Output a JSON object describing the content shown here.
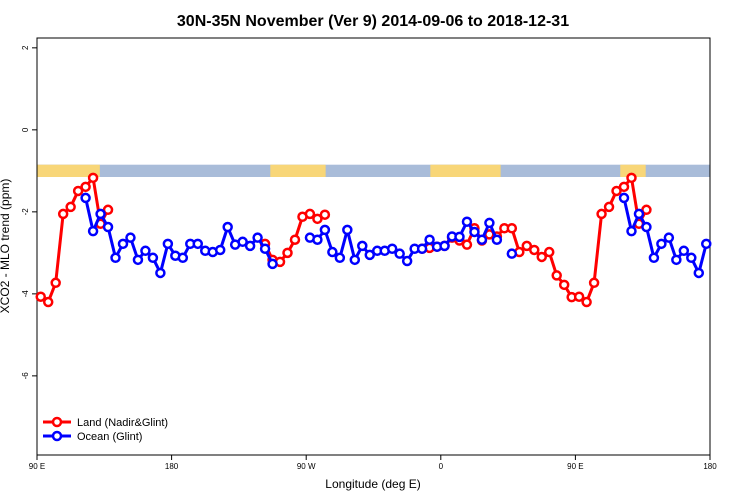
{
  "chart_data": {
    "type": "line",
    "title": "30N-35N November (Ver 9)   2014-09-06 to 2018-12-31",
    "x_label": "Longitude (deg E)",
    "y_label": "XCO2 - MLO trend (ppm)",
    "xlim": [
      90,
      540
    ],
    "ylim": [
      -7.93,
      2.24
    ],
    "xticks": [
      {
        "value": 90,
        "label": "90 E"
      },
      180,
      {
        "value": 270,
        "label": "90 W"
      },
      {
        "value": 360,
        "label": "0"
      },
      {
        "value": 450,
        "label": "90 E"
      },
      {
        "value": 540,
        "label": "180"
      }
    ],
    "yticks": [
      2,
      0,
      -2,
      -4,
      -6
    ],
    "band": {
      "range": [
        -1.15,
        -0.85
      ],
      "ocean_color": "#a9bcd9",
      "land_color": "#f8d678",
      "land": [
        [
          90,
          132
        ],
        [
          246,
          283
        ],
        [
          353,
          400
        ],
        [
          480,
          497
        ]
      ]
    },
    "legend": "bottom-left",
    "x": [
      92.5,
      97.5,
      102.5,
      107.5,
      112.5,
      117.5,
      122.5,
      127.5,
      132.5,
      137.5,
      142.5,
      147.5,
      152.5,
      157.5,
      162.5,
      167.5,
      172.5,
      177.5,
      182.5,
      187.5,
      192.5,
      197.5,
      202.5,
      207.5,
      212.5,
      217.5,
      222.5,
      227.5,
      232.5,
      237.5,
      242.5,
      247.5,
      252.5,
      257.5,
      262.5,
      267.5,
      272.5,
      277.5,
      282.5,
      287.5,
      292.5,
      297.5,
      302.5,
      307.5,
      312.5,
      317.5,
      322.5,
      327.5,
      332.5,
      337.5,
      342.5,
      347.5,
      352.5,
      357.5,
      362.5,
      367.5,
      372.5,
      377.5,
      382.5,
      387.5,
      392.5,
      397.5,
      402.5,
      407.5,
      412.5,
      417.5,
      422.5,
      427.5,
      432.5,
      437.5,
      442.5,
      447.5,
      452.5,
      457.5,
      462.5,
      467.5,
      472.5,
      477.5,
      482.5,
      487.5,
      492.5,
      497.5,
      502.5,
      507.5,
      512.5,
      517.5,
      522.5,
      527.5,
      532.5,
      537.5
    ],
    "series": [
      {
        "name": "Land (Nadir&Glint)",
        "color": "#ff0000",
        "values": [
          -4.07,
          -4.2,
          -3.73,
          -2.05,
          -1.88,
          -1.49,
          -1.39,
          -1.17,
          -2.29,
          -1.95,
          null,
          null,
          null,
          null,
          null,
          null,
          null,
          null,
          null,
          null,
          null,
          null,
          null,
          null,
          null,
          null,
          null,
          null,
          null,
          null,
          -2.78,
          -3.17,
          -3.22,
          -3.0,
          -2.68,
          -2.12,
          -2.05,
          -2.17,
          -2.07,
          null,
          null,
          null,
          null,
          null,
          null,
          null,
          null,
          null,
          null,
          null,
          null,
          -2.9,
          -2.88,
          -2.85,
          -2.83,
          -2.63,
          -2.7,
          -2.8,
          -2.4,
          -2.7,
          -2.55,
          -2.6,
          -2.4,
          -2.4,
          -2.98,
          -2.83,
          -2.93,
          -3.1,
          -2.98,
          -3.55,
          -3.78,
          -4.08,
          -4.07,
          -4.2,
          -3.73,
          -2.05,
          -1.88,
          -1.49,
          -1.39,
          -1.17,
          -2.29,
          -1.95,
          null,
          null,
          null,
          null,
          null,
          null,
          null,
          null
        ]
      },
      {
        "name": "Ocean (Glint)",
        "color": "#0000ff",
        "values": [
          null,
          null,
          null,
          null,
          null,
          null,
          -1.66,
          -2.47,
          -2.05,
          -2.37,
          -3.12,
          -2.78,
          -2.63,
          -3.17,
          -2.95,
          -3.12,
          -3.49,
          -2.78,
          -3.07,
          -3.12,
          -2.78,
          -2.78,
          -2.95,
          -2.98,
          -2.93,
          -2.37,
          -2.8,
          -2.73,
          -2.83,
          -2.63,
          -2.9,
          -3.27,
          null,
          null,
          null,
          null,
          -2.63,
          -2.68,
          -2.44,
          -2.98,
          -3.12,
          -2.44,
          -3.17,
          -2.83,
          -3.05,
          -2.95,
          -2.95,
          -2.9,
          -3.02,
          -3.2,
          -2.9,
          -2.9,
          -2.68,
          -2.85,
          -2.83,
          -2.6,
          -2.61,
          -2.24,
          -2.49,
          -2.68,
          -2.27,
          -2.68,
          null,
          -3.02,
          null,
          null,
          null,
          null,
          null,
          null,
          null,
          null,
          null,
          null,
          null,
          null,
          null,
          null,
          -1.66,
          -2.47,
          -2.05,
          -2.37,
          -3.12,
          -2.78,
          -2.63,
          -3.17,
          -2.95,
          -3.12,
          -3.49,
          -2.78
        ]
      }
    ]
  }
}
